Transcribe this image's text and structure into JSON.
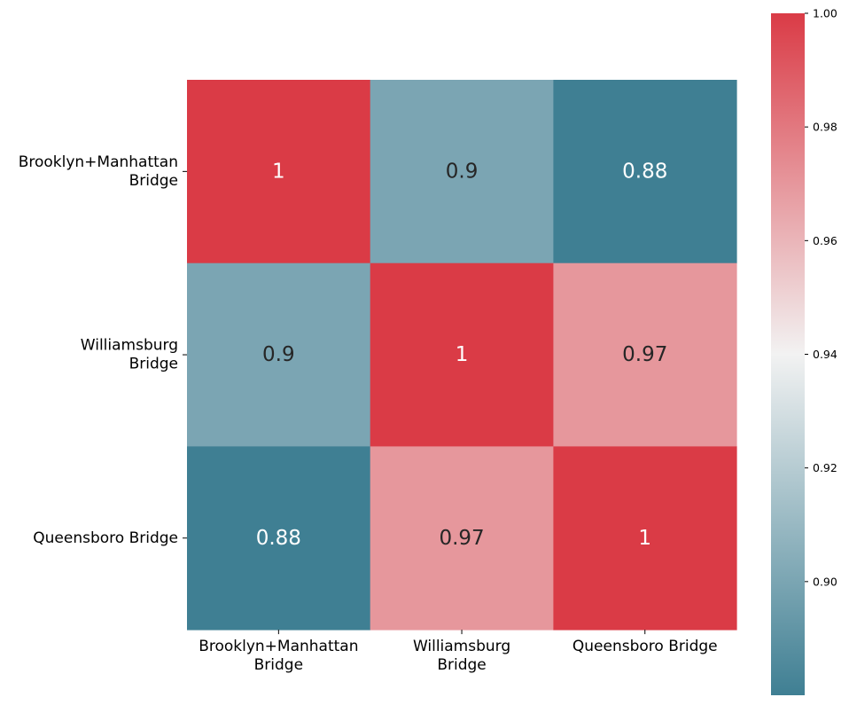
{
  "chart_data": {
    "type": "heatmap",
    "x_categories": [
      [
        "Brooklyn+Manhattan",
        "Bridge"
      ],
      [
        "Williamsburg",
        "Bridge"
      ],
      [
        "Queensboro Bridge"
      ]
    ],
    "y_categories": [
      [
        "Brooklyn+Manhattan",
        "Bridge"
      ],
      [
        "Williamsburg",
        "Bridge"
      ],
      [
        "Queensboro Bridge"
      ]
    ],
    "values": [
      [
        1,
        0.9,
        0.88
      ],
      [
        0.9,
        1,
        0.97
      ],
      [
        0.88,
        0.97,
        1
      ]
    ],
    "cell_labels": [
      [
        "1",
        "0.9",
        "0.88"
      ],
      [
        "0.9",
        "1",
        "0.97"
      ],
      [
        "0.88",
        "0.97",
        "1"
      ]
    ],
    "title": "",
    "xlabel": "",
    "ylabel": "",
    "colorbar": {
      "vmin": 0.88,
      "vmax": 1.0,
      "ticks": [
        0.9,
        0.92,
        0.94,
        0.96,
        0.98,
        1.0
      ],
      "tick_labels": [
        "0.90",
        "0.92",
        "0.94",
        "0.96",
        "0.98",
        "1.00"
      ],
      "placement": "right"
    },
    "colors": {
      "low": "#3f7f93",
      "mid": "#f2f2f2",
      "high": "#da3b46"
    },
    "grid": false
  }
}
